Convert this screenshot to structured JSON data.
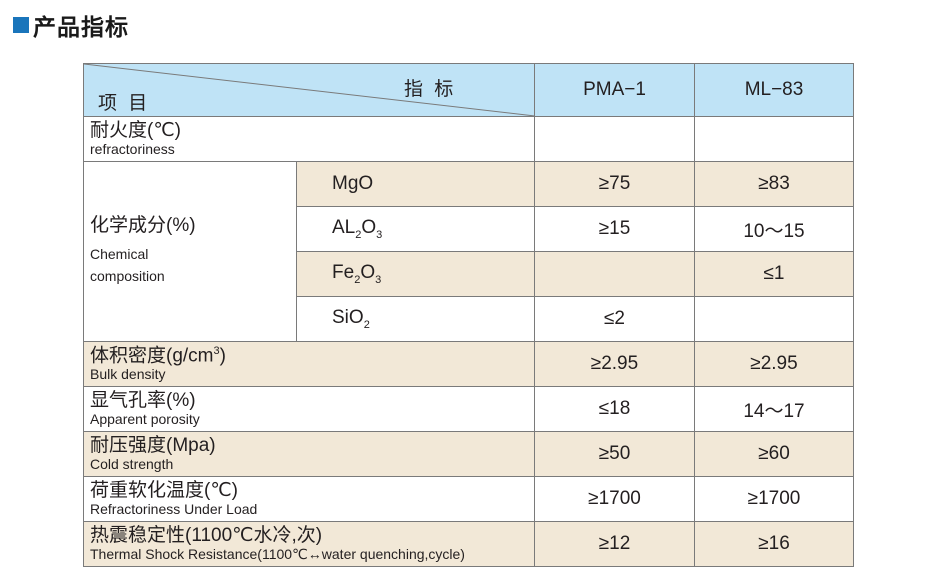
{
  "heading": {
    "title": "产品指标"
  },
  "table": {
    "header": {
      "corner_top": "指 标",
      "corner_bottom": "项 目",
      "col1": "PMA−1",
      "col2": "ML−83"
    },
    "refractoriness": {
      "zh": "耐火度(℃)",
      "en": "refractoriness",
      "v1": "",
      "v2": ""
    },
    "chemical": {
      "zh": "化学成分(%)",
      "en1": "Chemical",
      "en2": "composition",
      "rows": [
        {
          "name": "MgO",
          "v1": "≥75",
          "v2": "≥83"
        },
        {
          "name_main": "AL",
          "name_sub": "2",
          "name_main2": "O",
          "name_sub2": "3",
          "v1": "≥15",
          "v2": "10～15"
        },
        {
          "name_main": "Fe",
          "name_sub": "2",
          "name_main2": "O",
          "name_sub2": "3",
          "v1": "",
          "v2": "≤1"
        },
        {
          "name_main": "SiO",
          "name_sub": "2",
          "v1": "≤2",
          "v2": ""
        }
      ]
    },
    "rows": [
      {
        "zh": "体积密度(g/cm",
        "zh_sup": "3",
        "zh_end": ")",
        "en": "Bulk density",
        "v1": "≥2.95",
        "v2": "≥2.95",
        "tan": true
      },
      {
        "zh": "显气孔率(%)",
        "en": "Apparent porosity",
        "v1": "≤18",
        "v2": "14～17",
        "tan": false
      },
      {
        "zh": "耐压强度(Mpa)",
        "en": "Cold strength",
        "v1": "≥50",
        "v2": "≥60",
        "tan": true
      },
      {
        "zh": "荷重软化温度(℃)",
        "en": "Refractoriness Under Load",
        "v1": "≥1700",
        "v2": "≥1700",
        "tan": false
      },
      {
        "zh": "热震稳定性(1100℃水冷,次)",
        "en": "Thermal Shock Resistance(1100℃↔water quenching,cycle)",
        "v1": "≥12",
        "v2": "≥16",
        "tan": true
      }
    ]
  },
  "colors": {
    "heading_square": "#1a75bb",
    "header_bg": "#bfe3f6",
    "row_tan": "#f2e8d7",
    "border": "#7a7a7a"
  }
}
